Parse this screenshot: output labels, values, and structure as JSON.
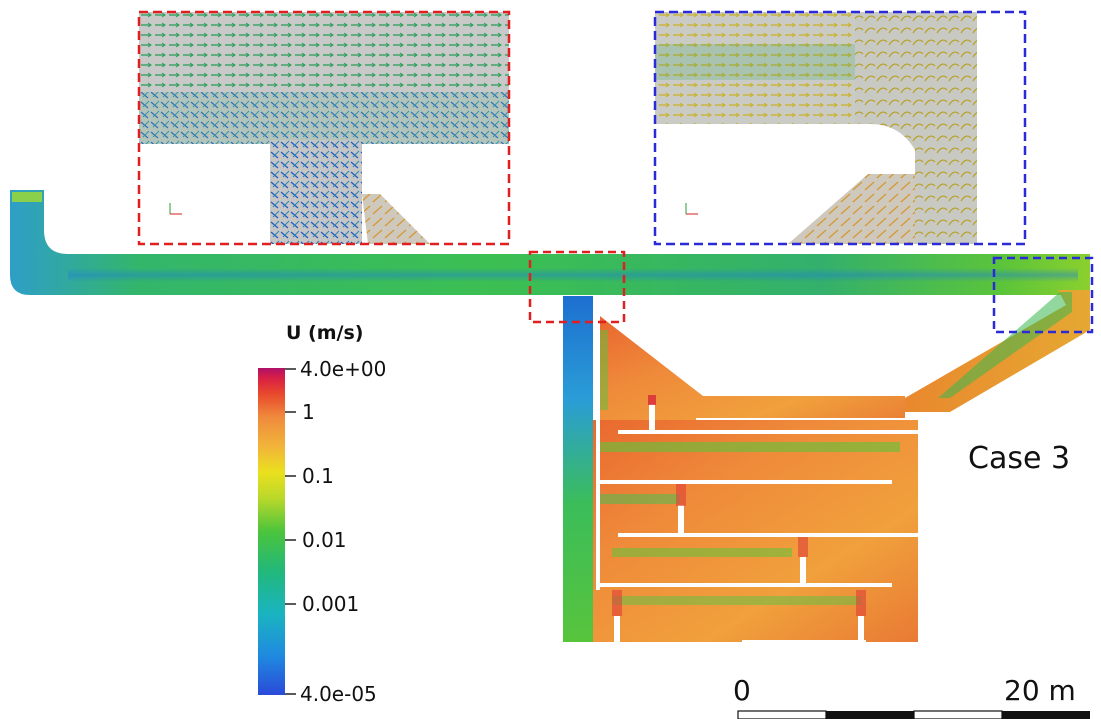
{
  "colorbar": {
    "title": "U (m/s)",
    "scale": "log",
    "min": "4.0e-05",
    "max": "4.0e+00",
    "ticks": [
      "4.0e+00",
      "1",
      "0.1",
      "0.01",
      "0.001",
      "4.0e-05"
    ],
    "colormap": [
      "#3a1fa0",
      "#1f6fd6",
      "#1aaee0",
      "#22b890",
      "#35c247",
      "#9bd22c",
      "#e8e21e",
      "#f2b63a",
      "#f08a3c",
      "#e84b2c",
      "#d81f3a",
      "#b2105f"
    ]
  },
  "case_label": "Case 3",
  "scale_bar": {
    "start_label": "0",
    "end_label": "20 m"
  },
  "insets": [
    {
      "name": "inset-junction",
      "frame_color": "#e02020"
    },
    {
      "name": "inset-outlet-bend",
      "frame_color": "#2a2ad8"
    }
  ]
}
